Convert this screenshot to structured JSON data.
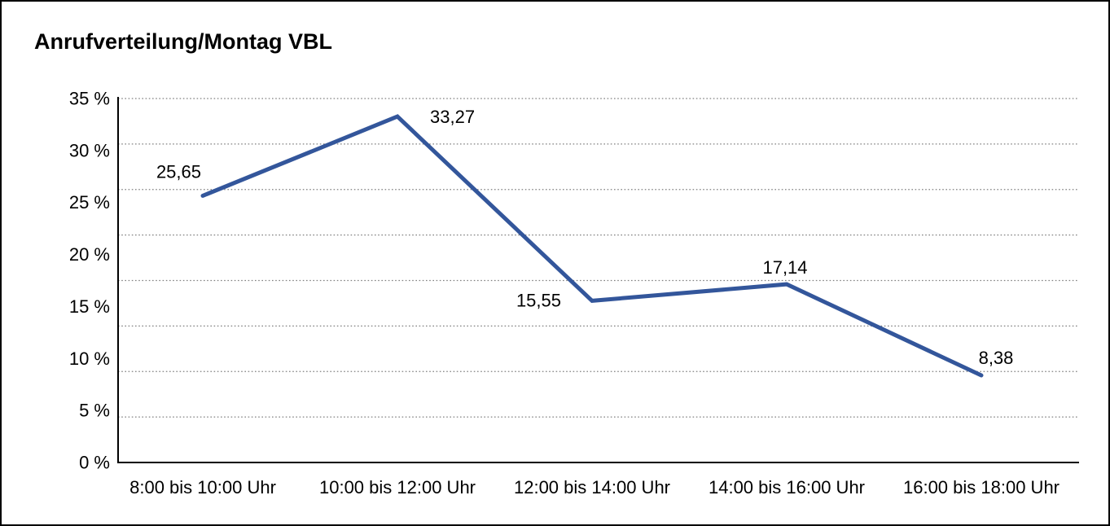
{
  "window": {
    "title": "Anrufverteilung/Montag VBL"
  },
  "chart_data": {
    "type": "line",
    "title": "Anrufverteilung/Montag VBL",
    "categories": [
      "8:00 bis 10:00 Uhr",
      "10:00 bis 12:00 Uhr",
      "12:00 bis 14:00 Uhr",
      "14:00 bis 16:00 Uhr",
      "16:00 bis 18:00 Uhr"
    ],
    "values": [
      25.65,
      33.27,
      15.55,
      17.14,
      8.38
    ],
    "value_labels": [
      "25,65",
      "33,27",
      "15,55",
      "17,14",
      "8,38"
    ],
    "series_count": 1,
    "xlabel": "",
    "ylabel": "",
    "ylim": [
      0,
      35
    ],
    "y_tick_values": [
      35,
      30,
      25,
      20,
      15,
      10,
      5,
      0
    ],
    "y_tick_labels": [
      "35 %",
      "30 %",
      "25 %",
      "20 %",
      "15 %",
      "10 %",
      "5 %",
      "0 %"
    ],
    "grid": "horizontal-dotted",
    "grid_interval_count": 8,
    "legend": "none",
    "line_color": "#33569B",
    "axis_color": "#000000",
    "grid_color": "#808080",
    "label_placements": [
      "above-left",
      "right",
      "left",
      "above",
      "above-right"
    ]
  }
}
